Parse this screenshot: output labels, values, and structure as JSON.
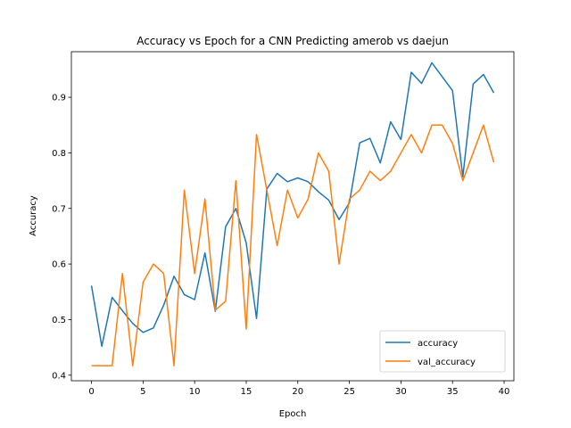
{
  "chart_data": {
    "type": "line",
    "title": "Accuracy vs Epoch for a CNN Predicting amerob vs daejun",
    "xlabel": "Epoch",
    "ylabel": "Accuracy",
    "xlim": [
      -1.95,
      40.95
    ],
    "ylim": [
      0.39,
      0.982
    ],
    "xticks": [
      0,
      5,
      10,
      15,
      20,
      25,
      30,
      35,
      40
    ],
    "yticks": [
      0.4,
      0.5,
      0.6,
      0.7,
      0.8,
      0.9
    ],
    "grid": false,
    "legend_position": "lower-right",
    "x": [
      0,
      1,
      2,
      3,
      4,
      5,
      6,
      7,
      8,
      9,
      10,
      11,
      12,
      13,
      14,
      15,
      16,
      17,
      18,
      19,
      20,
      21,
      22,
      23,
      24,
      25,
      26,
      27,
      28,
      29,
      30,
      31,
      32,
      33,
      34,
      35,
      36,
      37,
      38,
      39
    ],
    "series": [
      {
        "name": "accuracy",
        "color": "#1f77b4",
        "values": [
          0.561,
          0.452,
          0.54,
          0.516,
          0.493,
          0.477,
          0.485,
          0.526,
          0.578,
          0.545,
          0.536,
          0.62,
          0.515,
          0.667,
          0.7,
          0.638,
          0.502,
          0.735,
          0.763,
          0.748,
          0.755,
          0.748,
          0.73,
          0.715,
          0.68,
          0.71,
          0.818,
          0.826,
          0.782,
          0.856,
          0.824,
          0.945,
          0.925,
          0.962,
          0.937,
          0.912,
          0.757,
          0.924,
          0.941,
          0.908
        ]
      },
      {
        "name": "val_accuracy",
        "color": "#ff7f0e",
        "values": [
          0.417,
          0.417,
          0.417,
          0.583,
          0.417,
          0.567,
          0.6,
          0.583,
          0.417,
          0.733,
          0.583,
          0.717,
          0.517,
          0.533,
          0.75,
          0.483,
          0.833,
          0.733,
          0.633,
          0.733,
          0.683,
          0.717,
          0.8,
          0.767,
          0.6,
          0.717,
          0.733,
          0.767,
          0.75,
          0.767,
          0.8,
          0.833,
          0.8,
          0.85,
          0.85,
          0.817,
          0.75,
          0.8,
          0.85,
          0.783
        ]
      }
    ]
  }
}
